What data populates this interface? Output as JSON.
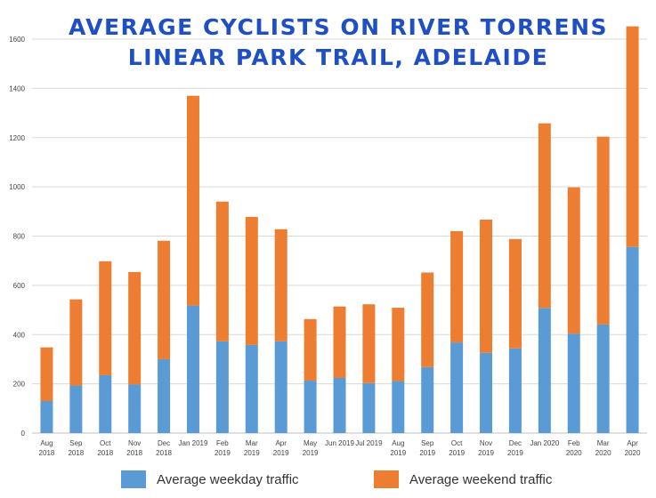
{
  "chart_data": {
    "type": "bar",
    "stacked": true,
    "title": [
      "Average cyclists on River Torrens",
      "Linear Park Trail, Adelaide"
    ],
    "xlabel": "",
    "ylabel": "",
    "ylim": [
      0,
      1600
    ],
    "yticks": [
      0,
      200,
      400,
      600,
      800,
      1000,
      1200,
      1400,
      1600
    ],
    "grid": true,
    "legend_position": "bottom",
    "categories": [
      [
        "Aug",
        "2018"
      ],
      [
        "Sep",
        "2018"
      ],
      [
        "Oct",
        "2018"
      ],
      [
        "Nov",
        "2018"
      ],
      [
        "Dec",
        "2018"
      ],
      [
        "Jan 2019"
      ],
      [
        "Feb",
        "2019"
      ],
      [
        "Mar",
        "2019"
      ],
      [
        "Apr",
        "2019"
      ],
      [
        "May",
        "2019"
      ],
      [
        "Jun 2019"
      ],
      [
        "Jul 2019"
      ],
      [
        "Aug",
        "2019"
      ],
      [
        "Sep",
        "2019"
      ],
      [
        "Oct",
        "2019"
      ],
      [
        "Nov",
        "2019"
      ],
      [
        "Dec",
        "2019"
      ],
      [
        "Jan 2020"
      ],
      [
        "Feb",
        "2020"
      ],
      [
        "Mar",
        "2020"
      ],
      [
        "Apr",
        "2020"
      ]
    ],
    "series": [
      {
        "name": "Average weekday traffic",
        "color": "#5b9bd5",
        "values": [
          130,
          193,
          235,
          197,
          300,
          518,
          373,
          358,
          373,
          213,
          224,
          203,
          211,
          268,
          368,
          326,
          344,
          508,
          404,
          441,
          756
        ]
      },
      {
        "name": "Average weekend traffic",
        "color": "#ed7d31",
        "values": [
          218,
          350,
          463,
          457,
          481,
          852,
          567,
          520,
          455,
          250,
          290,
          320,
          298,
          384,
          452,
          541,
          444,
          750,
          594,
          763,
          896
        ]
      }
    ]
  },
  "colors": {
    "title": "#1f4fc4",
    "grid": "#d9d9d9",
    "axis": "#bfbfbf"
  }
}
